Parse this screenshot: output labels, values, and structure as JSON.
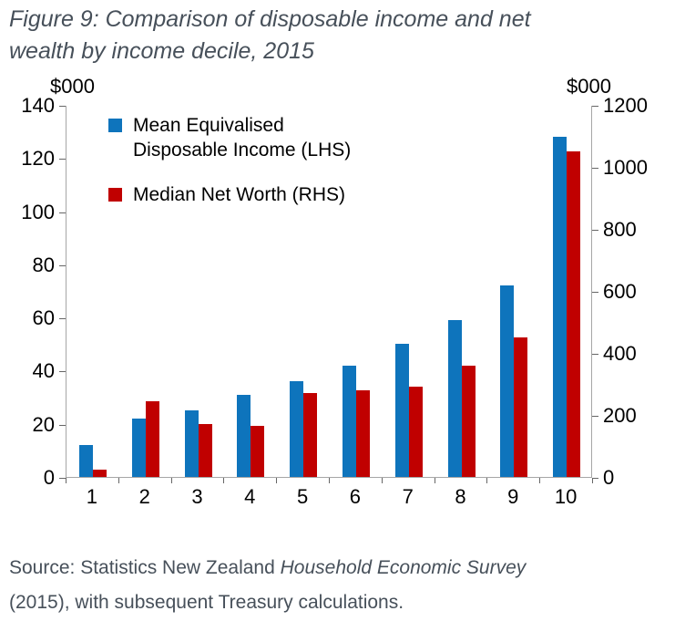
{
  "figure_title": "Figure 9: Comparison of disposable income and net wealth by income decile, 2015",
  "chart_data": {
    "type": "bar",
    "title": "Figure 9: Comparison of disposable income and net wealth by income decile, 2015",
    "categories": [
      "1",
      "2",
      "3",
      "4",
      "5",
      "6",
      "7",
      "8",
      "9",
      "10"
    ],
    "series": [
      {
        "name": "Mean Equivalised Disposable Income (LHS)",
        "axis": "left",
        "color": "#0E74BC",
        "values": [
          12,
          22,
          25,
          31,
          36,
          42,
          50,
          59,
          72,
          128
        ]
      },
      {
        "name": "Median Net Worth (RHS)",
        "axis": "right",
        "color": "#C00000",
        "values": [
          25,
          245,
          170,
          165,
          270,
          280,
          290,
          360,
          450,
          1050
        ]
      }
    ],
    "left_axis": {
      "unit": "$000",
      "min": 0,
      "max": 140,
      "ticks": [
        0,
        20,
        40,
        60,
        80,
        100,
        120,
        140
      ]
    },
    "right_axis": {
      "unit": "$000",
      "min": 0,
      "max": 1200,
      "ticks": [
        0,
        200,
        400,
        600,
        800,
        1000,
        1200
      ]
    },
    "grid": false,
    "legend_position": "top-left-inside"
  },
  "source": {
    "prefix": "Source: Statistics New Zealand ",
    "italic": "Household Economic Survey",
    "suffix": " (2015), with subsequent Treasury calculations."
  },
  "colors": {
    "income_blue": "#0E74BC",
    "networth_red": "#C00000",
    "heading_text": "#47505A",
    "axis_line": "#A6A6A6",
    "tick_mark": "#666666",
    "axis_text": "#000000"
  }
}
